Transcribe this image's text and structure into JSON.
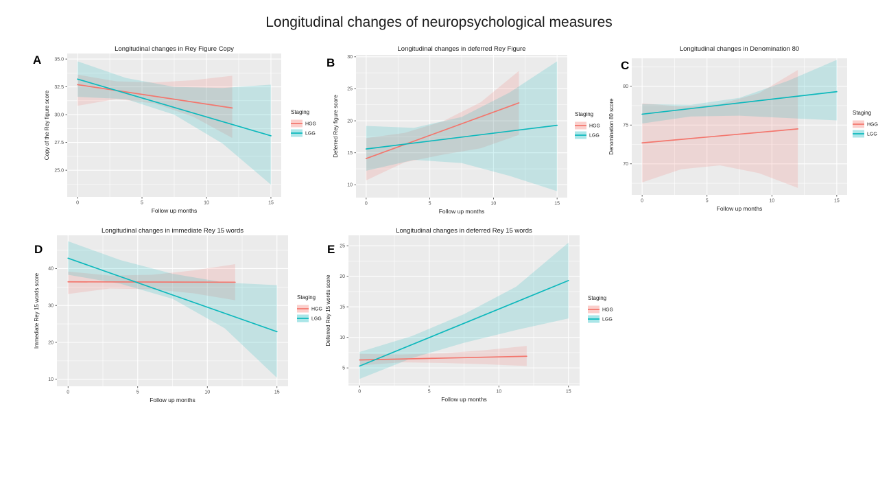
{
  "main_title": "Longitudinal changes of neuropsychological measures",
  "colors": {
    "panel_bg": "#EBEBEB",
    "grid": "#FFFFFF",
    "tick_text": "#4D4D4D",
    "title_text": "#1A1A1A",
    "panel_label_text": "#000000",
    "hgg": "#F3766D",
    "lgg": "#0DB8BC",
    "ribbon_opacity": 0.18
  },
  "legend": {
    "title": "Staging",
    "entries": [
      {
        "label": "HGG",
        "color": "#F3766D"
      },
      {
        "label": "LGG",
        "color": "#0DB8BC"
      }
    ]
  },
  "chart_data": [
    {
      "id": "A",
      "type": "line",
      "title": "Longitudinal changes in Rey Figure Copy",
      "xlabel": "Follow up months",
      "ylabel": "Copy of the Rey figure score",
      "xlim": [
        -0.8,
        15.8
      ],
      "ylim": [
        22.6,
        35.5
      ],
      "x_ticks": {
        "values": [
          0,
          5,
          10,
          15
        ],
        "labels": [
          "0",
          "5",
          "10",
          "15"
        ]
      },
      "y_ticks": {
        "values": [
          25,
          27.5,
          30,
          32.5,
          35
        ],
        "labels": [
          "25.0",
          "27.5",
          "30.0",
          "32.5",
          "35.0"
        ]
      },
      "series": [
        {
          "name": "HGG",
          "x": [
            0,
            12
          ],
          "y": [
            32.7,
            30.6
          ],
          "ribbon_x": [
            0,
            3,
            6,
            9,
            12
          ],
          "ribbon_upper": [
            33.6,
            33.0,
            32.9,
            33.1,
            33.5
          ],
          "ribbon_lower": [
            30.8,
            31.4,
            31.0,
            29.8,
            27.9
          ]
        },
        {
          "name": "LGG",
          "x": [
            0,
            15
          ],
          "y": [
            33.2,
            28.1
          ],
          "ribbon_x": [
            0,
            3.75,
            7.5,
            11.25,
            15
          ],
          "ribbon_upper": [
            34.8,
            33.3,
            32.5,
            32.4,
            32.7
          ],
          "ribbon_lower": [
            31.6,
            31.4,
            30.0,
            27.4,
            23.7
          ]
        }
      ]
    },
    {
      "id": "B",
      "type": "line",
      "title": "Longitudinal changes in deferred Rey Figure",
      "xlabel": "Follow up months",
      "ylabel": "Deferred Rey figure score",
      "xlim": [
        -0.8,
        15.8
      ],
      "ylim": [
        8.0,
        30.3
      ],
      "x_ticks": {
        "values": [
          0,
          5,
          10,
          15
        ],
        "labels": [
          "0",
          "5",
          "10",
          "15"
        ]
      },
      "y_ticks": {
        "values": [
          10,
          15,
          20,
          25,
          30
        ],
        "labels": [
          "10",
          "15",
          "20",
          "25",
          "30"
        ]
      },
      "series": [
        {
          "name": "HGG",
          "x": [
            0,
            12
          ],
          "y": [
            14.1,
            22.8
          ],
          "ribbon_x": [
            0,
            3,
            6,
            9,
            12
          ],
          "ribbon_upper": [
            17.3,
            18.1,
            19.9,
            22.9,
            27.8
          ],
          "ribbon_lower": [
            10.7,
            13.5,
            14.7,
            15.7,
            17.8
          ]
        },
        {
          "name": "LGG",
          "x": [
            0,
            15
          ],
          "y": [
            15.6,
            19.3
          ],
          "ribbon_x": [
            0,
            3.75,
            7.5,
            11.25,
            15
          ],
          "ribbon_upper": [
            19.2,
            18.9,
            20.6,
            24.4,
            29.3
          ],
          "ribbon_lower": [
            12.2,
            13.9,
            13.4,
            11.4,
            9.0
          ]
        }
      ]
    },
    {
      "id": "C",
      "type": "line",
      "title": "Longitudinal changes in Denomination 80",
      "xlabel": "Follow up months",
      "ylabel": "Denomination 80 score",
      "xlim": [
        -0.8,
        15.8
      ],
      "ylim": [
        66.0,
        83.6
      ],
      "x_ticks": {
        "values": [
          0,
          5,
          10,
          15
        ],
        "labels": [
          "0",
          "5",
          "10",
          "15"
        ]
      },
      "y_ticks": {
        "values": [
          70,
          75,
          80
        ],
        "labels": [
          "70",
          "75",
          "80"
        ]
      },
      "series": [
        {
          "name": "HGG",
          "x": [
            0,
            12
          ],
          "y": [
            72.7,
            74.5
          ],
          "ribbon_x": [
            0,
            3,
            6,
            9,
            12
          ],
          "ribbon_upper": [
            77.8,
            77.4,
            77.7,
            79.1,
            82.1
          ],
          "ribbon_lower": [
            67.6,
            69.3,
            69.8,
            68.8,
            66.9
          ]
        },
        {
          "name": "LGG",
          "x": [
            0,
            15
          ],
          "y": [
            76.4,
            79.3
          ],
          "ribbon_x": [
            0,
            3.75,
            7.5,
            11.25,
            15
          ],
          "ribbon_upper": [
            77.7,
            77.6,
            78.5,
            80.7,
            83.4
          ],
          "ribbon_lower": [
            75.2,
            76.1,
            76.2,
            75.9,
            75.6
          ]
        }
      ]
    },
    {
      "id": "D",
      "type": "line",
      "title": "Longitudinal changes in immediate Rey 15 words",
      "xlabel": "Follow up months",
      "ylabel": "Immediate Rey 15 words score",
      "xlim": [
        -0.8,
        15.8
      ],
      "ylim": [
        8.1,
        49.0
      ],
      "x_ticks": {
        "values": [
          0,
          5,
          10,
          15
        ],
        "labels": [
          "0",
          "5",
          "10",
          "15"
        ]
      },
      "y_ticks": {
        "values": [
          10,
          20,
          30,
          40
        ],
        "labels": [
          "10",
          "20",
          "30",
          "40"
        ]
      },
      "series": [
        {
          "name": "HGG",
          "x": [
            0,
            12
          ],
          "y": [
            36.4,
            36.3
          ],
          "ribbon_x": [
            0,
            3,
            6,
            9,
            12
          ],
          "ribbon_upper": [
            39.2,
            38.1,
            38.3,
            39.5,
            41.2
          ],
          "ribbon_lower": [
            33.1,
            34.6,
            34.4,
            33.3,
            31.4
          ]
        },
        {
          "name": "LGG",
          "x": [
            0,
            15
          ],
          "y": [
            42.8,
            22.9
          ],
          "ribbon_x": [
            0,
            3.75,
            7.5,
            11.25,
            15
          ],
          "ribbon_upper": [
            47.4,
            42.3,
            38.6,
            36.2,
            35.5
          ],
          "ribbon_lower": [
            38.3,
            35.9,
            31.8,
            23.8,
            10.4
          ]
        }
      ]
    },
    {
      "id": "E",
      "type": "line",
      "title": "Longitudinal changes in deferred Rey 15 words",
      "xlabel": "Follow up months",
      "ylabel": "Deferred Rey 15 words score",
      "xlim": [
        -0.8,
        15.8
      ],
      "ylim": [
        2.1,
        26.7
      ],
      "x_ticks": {
        "values": [
          0,
          5,
          10,
          15
        ],
        "labels": [
          "0",
          "5",
          "10",
          "15"
        ]
      },
      "y_ticks": {
        "values": [
          5,
          10,
          15,
          20,
          25
        ],
        "labels": [
          "5",
          "10",
          "15",
          "20",
          "25"
        ]
      },
      "series": [
        {
          "name": "HGG",
          "x": [
            0,
            12
          ],
          "y": [
            6.3,
            6.9
          ],
          "ribbon_x": [
            0,
            3,
            6,
            9,
            12
          ],
          "ribbon_upper": [
            7.3,
            7.2,
            7.4,
            7.9,
            8.6
          ],
          "ribbon_lower": [
            5.4,
            5.9,
            5.8,
            5.6,
            5.3
          ]
        },
        {
          "name": "LGG",
          "x": [
            0,
            15
          ],
          "y": [
            5.3,
            19.3
          ],
          "ribbon_x": [
            0,
            3.75,
            7.5,
            11.25,
            15
          ],
          "ribbon_upper": [
            7.6,
            10.2,
            13.8,
            18.3,
            25.5
          ],
          "ribbon_lower": [
            3.2,
            6.6,
            9.1,
            11.2,
            13.1
          ]
        }
      ]
    }
  ]
}
